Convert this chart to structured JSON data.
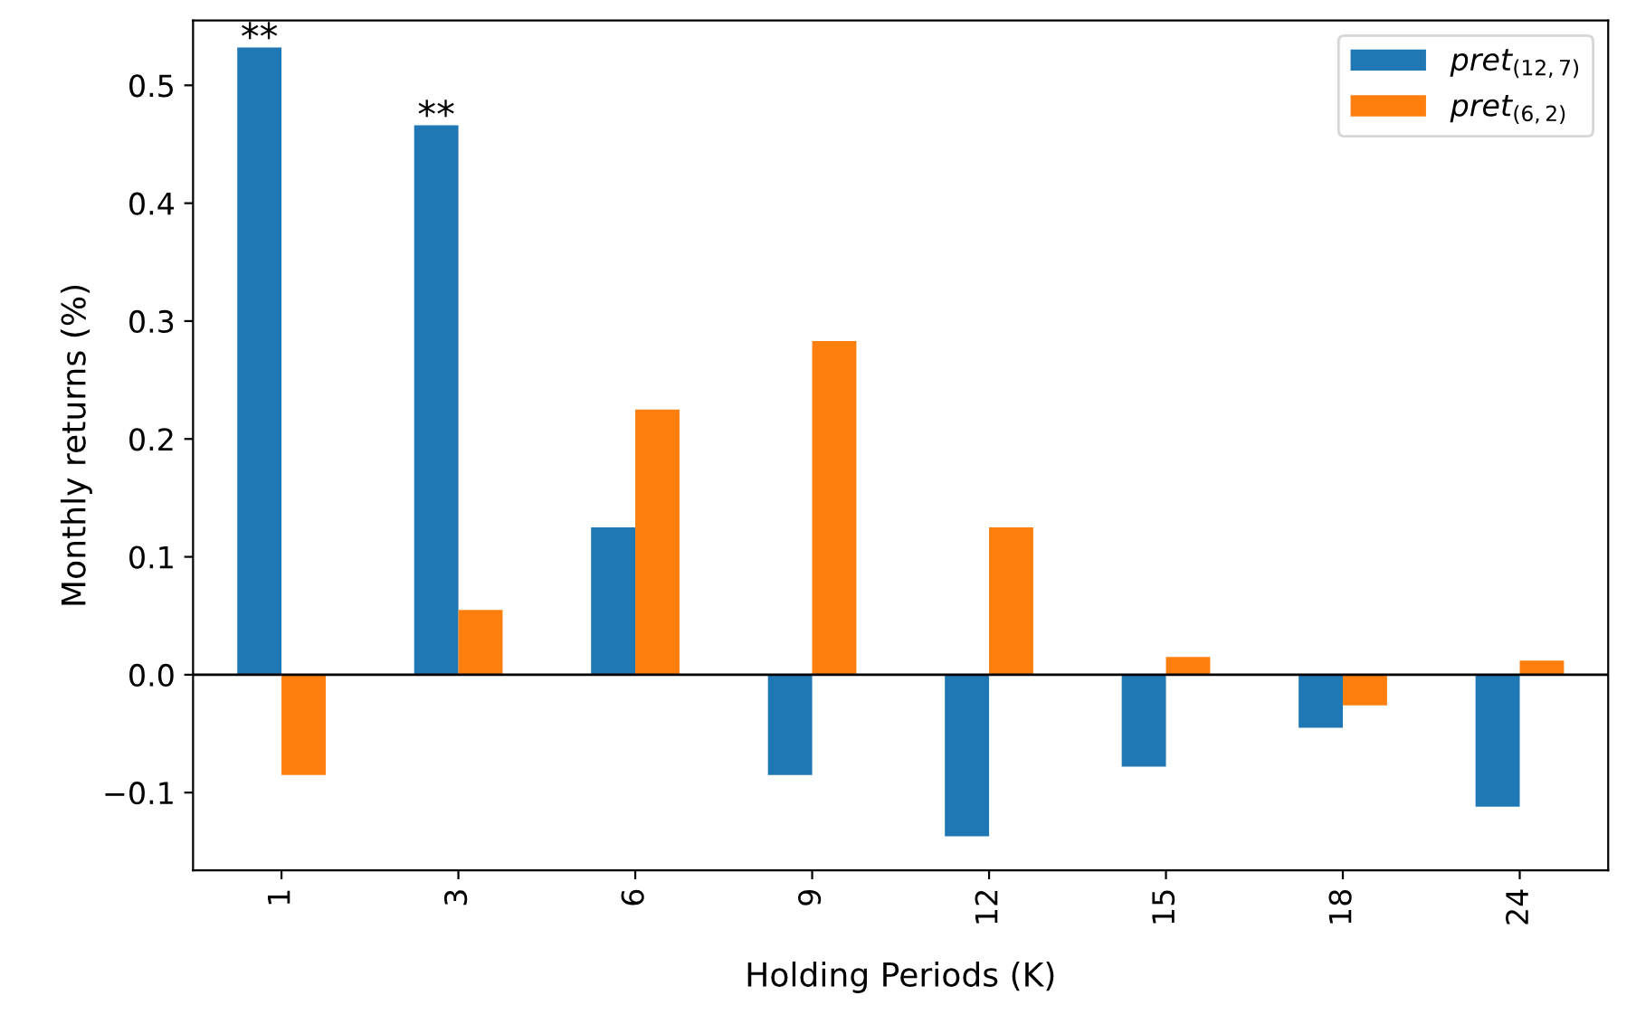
{
  "chart_data": {
    "type": "bar",
    "xlabel": "Holding Periods (K)",
    "ylabel": "Monthly returns (%)",
    "categories": [
      "1",
      "3",
      "6",
      "9",
      "12",
      "15",
      "18",
      "24"
    ],
    "series": [
      {
        "name": "pret$_{(12,7)}$",
        "color": "#1f77b4",
        "values": [
          0.532,
          0.466,
          0.125,
          -0.085,
          -0.137,
          -0.078,
          -0.045,
          -0.112
        ]
      },
      {
        "name": "pret$_{(6,2)}$",
        "color": "#ff7f0e",
        "values": [
          -0.085,
          0.055,
          0.225,
          0.283,
          0.125,
          0.015,
          -0.026,
          0.012
        ]
      }
    ],
    "ylim": [
      -0.166,
      0.555
    ],
    "yticks": [
      {
        "value": -0.1,
        "label": "−0.1"
      },
      "0.0",
      0.1,
      0.2,
      0.3,
      0.4,
      0.5
    ],
    "ref_lines": [
      {
        "axis": "y",
        "value": 0,
        "color": "#000000"
      }
    ],
    "annotations": [
      {
        "text": "**",
        "x": "1",
        "y": 0.532
      },
      {
        "text": "**",
        "x": "3",
        "y": 0.466
      }
    ],
    "legend": "top right",
    "grid": false
  }
}
